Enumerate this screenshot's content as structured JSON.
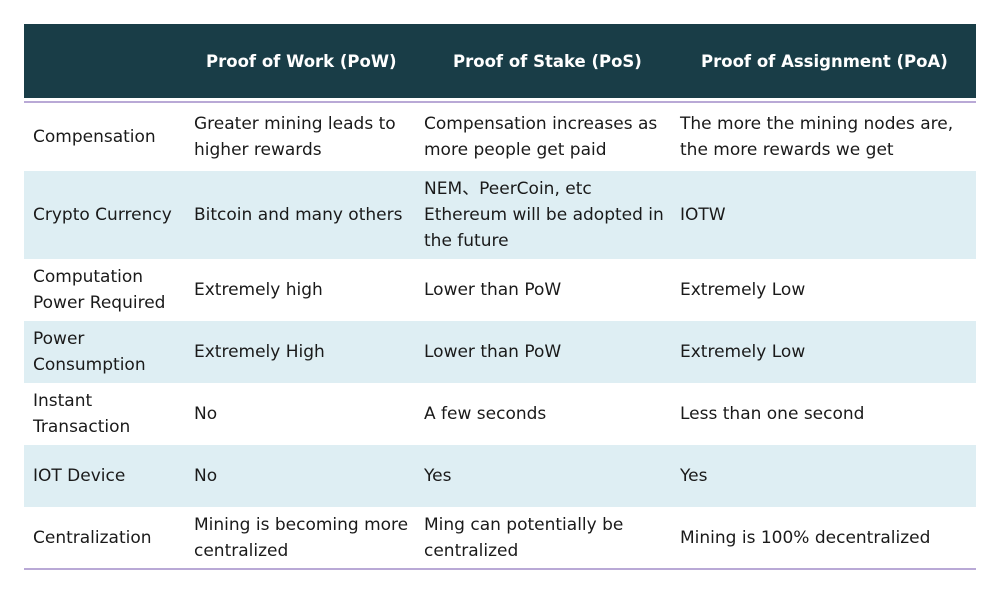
{
  "table": {
    "headers": [
      "",
      "Proof of Work (PoW)",
      "Proof of Stake (PoS)",
      "Proof of Assignment (PoA)"
    ],
    "rows": [
      {
        "label": "Compensation",
        "pow": "Greater mining leads to higher rewards",
        "pos": "Compensation increases as more people get paid",
        "poa": "The more the mining nodes are, the more rewards we get"
      },
      {
        "label": "Crypto Currency",
        "pow": "Bitcoin and many others",
        "pos": "NEM、PeerCoin, etc Ethereum will be adopted in the future",
        "poa": "IOTW"
      },
      {
        "label": "Computation Power Required",
        "pow": "Extremely high",
        "pos": "Lower than PoW",
        "poa": "Extremely Low"
      },
      {
        "label": "Power Consumption",
        "pow": "Extremely High",
        "pos": "Lower than PoW",
        "poa": "Extremely Low"
      },
      {
        "label": "Instant Transaction",
        "pow": "No",
        "pos": "A few seconds",
        "poa": "Less than one second"
      },
      {
        "label": "IOT Device",
        "pow": "No",
        "pos": "Yes",
        "poa": "Yes"
      },
      {
        "label": "Centralization",
        "pow": "Mining is becoming more centralized",
        "pos": "Ming can potentially be centralized",
        "poa": "Mining is 100% decentralized"
      }
    ]
  }
}
